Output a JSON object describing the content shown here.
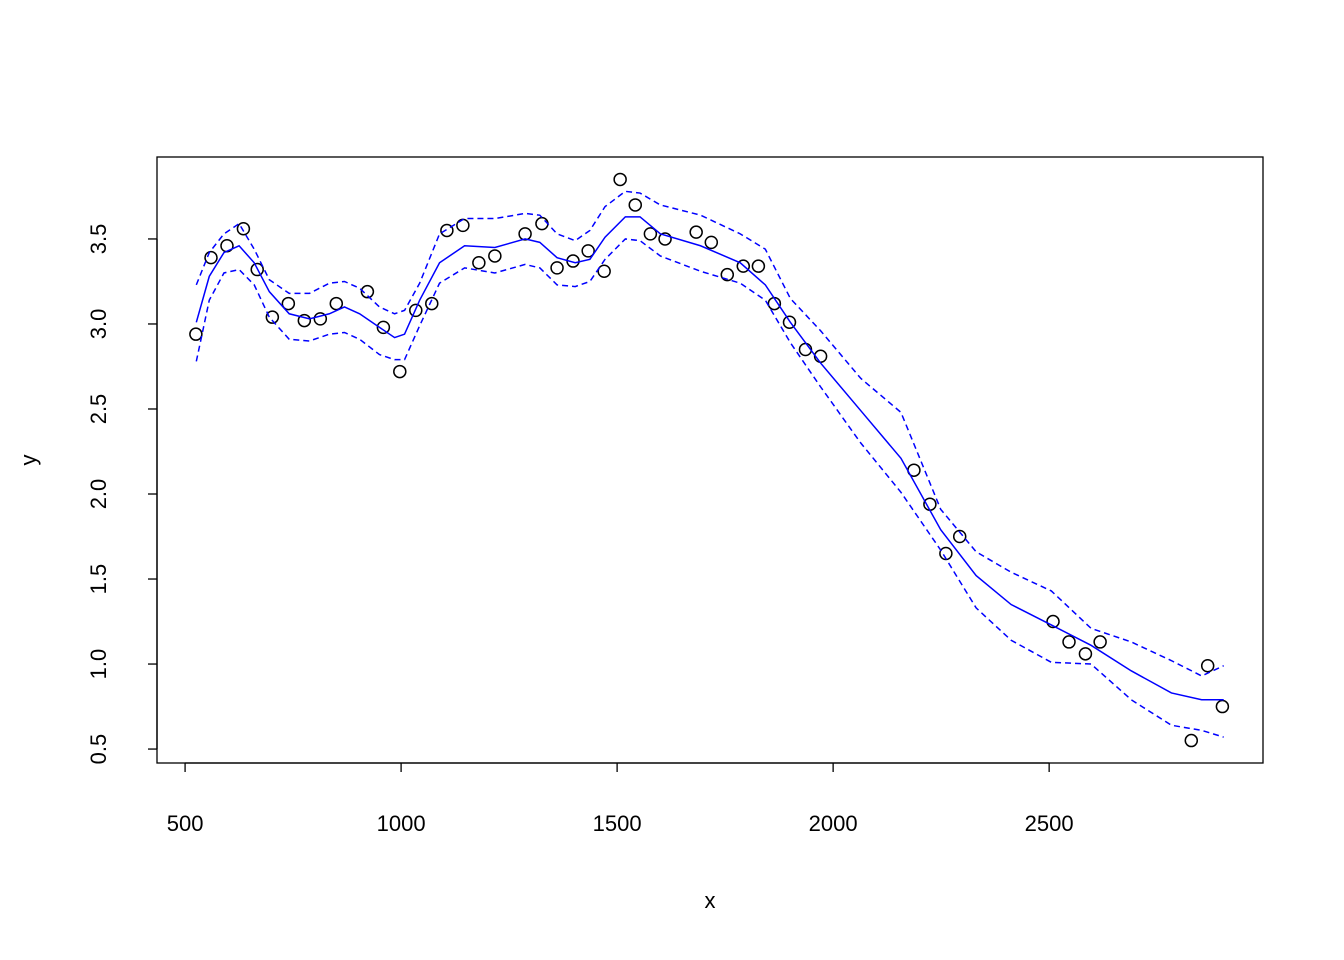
{
  "chart_data": {
    "type": "scatter",
    "xlabel": "x",
    "ylabel": "y",
    "xlim": [
      435,
      2995
    ],
    "ylim": [
      0.418,
      3.982
    ],
    "xticks": [
      500,
      1000,
      1500,
      2000,
      2500
    ],
    "yticks": [
      0.5,
      {
        "value": 1,
        "label": "1.0"
      },
      1.5,
      {
        "value": 2,
        "label": "2.0"
      },
      2.5,
      {
        "value": 3,
        "label": "3.0"
      },
      3.5
    ],
    "series": [
      {
        "mode": "points",
        "color": "#000000",
        "x": [
          525,
          560,
          597,
          635,
          667,
          702,
          739,
          776,
          813,
          850,
          922,
          959,
          997,
          1034,
          1071,
          1106,
          1143,
          1180,
          1217,
          1287,
          1326,
          1361,
          1398,
          1433,
          1470,
          1507,
          1542,
          1577,
          1611,
          1683,
          1718,
          1755,
          1792,
          1827,
          1864,
          1899,
          1936,
          1971,
          2187,
          2224,
          2261,
          2293,
          2509,
          2546,
          2584,
          2618,
          2829,
          2867,
          2901
        ],
        "values": [
          2.94,
          3.39,
          3.46,
          3.56,
          3.32,
          3.04,
          3.12,
          3.02,
          3.03,
          3.12,
          3.19,
          2.98,
          2.72,
          3.08,
          3.12,
          3.55,
          3.58,
          3.36,
          3.4,
          3.53,
          3.59,
          3.33,
          3.37,
          3.43,
          3.31,
          3.85,
          3.7,
          3.53,
          3.5,
          3.54,
          3.48,
          3.29,
          3.34,
          3.34,
          3.12,
          3.01,
          2.85,
          2.81,
          2.14,
          1.94,
          1.65,
          1.75,
          1.25,
          1.13,
          1.06,
          1.13,
          0.55,
          0.99,
          0.75
        ]
      },
      {
        "mode": "line",
        "color": "#0000ff",
        "x": [
          526,
          556,
          590,
          625,
          660,
          695,
          741,
          788,
          834,
          869,
          904,
          950,
          985,
          1008,
          1043,
          1089,
          1147,
          1217,
          1287,
          1321,
          1361,
          1403,
          1437,
          1472,
          1519,
          1553,
          1600,
          1693,
          1785,
          1843,
          1901,
          1971,
          2064,
          2157,
          2249,
          2331,
          2412,
          2505,
          2597,
          2690,
          2783,
          2853,
          2904
        ],
        "values": [
          3.01,
          3.28,
          3.42,
          3.46,
          3.36,
          3.19,
          3.06,
          3.03,
          3.06,
          3.1,
          3.06,
          2.98,
          2.92,
          2.94,
          3.14,
          3.36,
          3.46,
          3.45,
          3.5,
          3.48,
          3.39,
          3.36,
          3.38,
          3.51,
          3.63,
          3.63,
          3.53,
          3.46,
          3.36,
          3.23,
          3.01,
          2.77,
          2.49,
          2.21,
          1.79,
          1.52,
          1.35,
          1.23,
          1.11,
          0.96,
          0.83,
          0.79,
          0.79
        ]
      },
      {
        "mode": "dashed",
        "color": "#0000ff",
        "x": [
          526,
          556,
          590,
          625,
          660,
          695,
          741,
          788,
          834,
          869,
          904,
          950,
          985,
          1008,
          1043,
          1089,
          1147,
          1217,
          1287,
          1321,
          1361,
          1403,
          1437,
          1472,
          1519,
          1553,
          1600,
          1693,
          1785,
          1843,
          1901,
          1971,
          2064,
          2157,
          2249,
          2331,
          2412,
          2505,
          2597,
          2690,
          2783,
          2853,
          2904
        ],
        "values": [
          3.23,
          3.42,
          3.53,
          3.59,
          3.44,
          3.26,
          3.18,
          3.18,
          3.24,
          3.25,
          3.21,
          3.1,
          3.06,
          3.08,
          3.24,
          3.53,
          3.62,
          3.62,
          3.65,
          3.64,
          3.53,
          3.49,
          3.55,
          3.69,
          3.78,
          3.77,
          3.7,
          3.64,
          3.53,
          3.44,
          3.15,
          2.96,
          2.68,
          2.48,
          1.91,
          1.66,
          1.54,
          1.43,
          1.21,
          1.13,
          1.02,
          0.93,
          0.99
        ]
      },
      {
        "mode": "dashed",
        "color": "#0000ff",
        "x": [
          526,
          556,
          590,
          625,
          660,
          695,
          741,
          788,
          834,
          869,
          904,
          950,
          985,
          1008,
          1043,
          1089,
          1147,
          1217,
          1287,
          1321,
          1361,
          1403,
          1437,
          1472,
          1519,
          1553,
          1600,
          1693,
          1785,
          1843,
          1901,
          1971,
          2064,
          2157,
          2249,
          2331,
          2412,
          2505,
          2597,
          2690,
          2783,
          2853,
          2904
        ],
        "values": [
          2.78,
          3.14,
          3.3,
          3.32,
          3.23,
          3.04,
          2.91,
          2.9,
          2.94,
          2.95,
          2.91,
          2.82,
          2.79,
          2.79,
          2.99,
          3.24,
          3.33,
          3.3,
          3.35,
          3.33,
          3.23,
          3.22,
          3.25,
          3.38,
          3.5,
          3.49,
          3.4,
          3.31,
          3.24,
          3.14,
          2.89,
          2.63,
          2.3,
          2.01,
          1.67,
          1.33,
          1.14,
          1.01,
          1.0,
          0.79,
          0.64,
          0.61,
          0.57
        ]
      }
    ]
  }
}
